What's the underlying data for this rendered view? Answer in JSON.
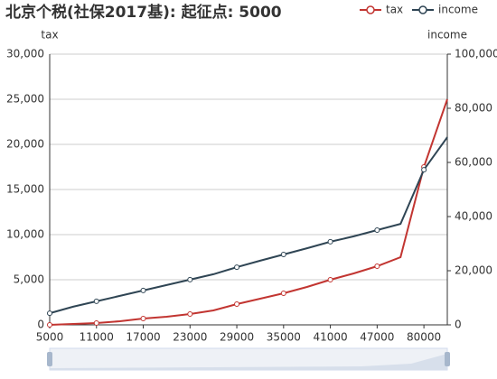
{
  "chart_data": {
    "type": "line",
    "title": "北京个税(社保2017基): 起征点: 5000",
    "y_label": "tax",
    "y2_label": "income",
    "categories": [
      "5000",
      null,
      "11000",
      null,
      "17000",
      null,
      "23000",
      null,
      "29000",
      null,
      "35000",
      null,
      "41000",
      null,
      "47000",
      null,
      "80000",
      null
    ],
    "series": [
      {
        "name": "tax",
        "color": "#c23531",
        "values": [
          0,
          100,
          200,
          400,
          700,
          900,
          1200,
          1600,
          2300,
          2900,
          3500,
          4200,
          5000,
          5700,
          6500,
          7500,
          17500,
          25000
        ]
      },
      {
        "name": "income",
        "color": "#2f4554",
        "axis": "y2",
        "values": [
          4300,
          6700,
          8700,
          10700,
          12700,
          14700,
          16700,
          18700,
          21300,
          23700,
          26000,
          28300,
          30700,
          32700,
          35000,
          37300,
          57300,
          69300
        ]
      }
    ],
    "ylim": [
      0,
      30000
    ],
    "yticks": [
      0,
      {
        "value": 5000,
        "label": "5,000"
      },
      {
        "value": 10000,
        "label": "10,000"
      },
      {
        "value": 15000,
        "label": "15,000"
      },
      {
        "value": 20000,
        "label": "20,000"
      },
      {
        "value": 25000,
        "label": "25,000"
      },
      {
        "value": 30000,
        "label": "30,000"
      }
    ],
    "y2lim": [
      0,
      100000
    ],
    "y2ticks": [
      0,
      {
        "value": 20000,
        "label": "20,000"
      },
      {
        "value": 40000,
        "label": "40,000"
      },
      {
        "value": 60000,
        "label": "60,000"
      },
      {
        "value": 80000,
        "label": "80,000"
      },
      {
        "value": 100000,
        "label": "100,000"
      }
    ],
    "grid": true
  }
}
